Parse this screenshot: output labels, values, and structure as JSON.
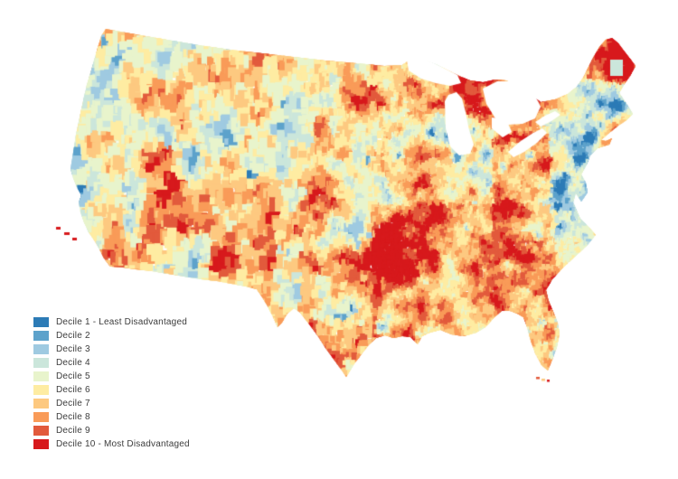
{
  "page": {
    "background": "#ffffff"
  },
  "map": {
    "name": "us-neighborhood-disadvantage-decile-choropleth",
    "geography": "Contiguous United States",
    "no_data_color": "#ffffff"
  },
  "legend": {
    "text_color": "#3c3c3c",
    "items": [
      {
        "label": "Decile 1 - Least Disadvantaged",
        "color": "#2C7BB6"
      },
      {
        "label": "Decile 2",
        "color": "#5DA2CB"
      },
      {
        "label": "Decile 3",
        "color": "#9FCAE1"
      },
      {
        "label": "Decile 4",
        "color": "#CBE6DB"
      },
      {
        "label": "Decile 5",
        "color": "#E8F4CC"
      },
      {
        "label": "Decile 6",
        "color": "#FEECA2"
      },
      {
        "label": "Decile 7",
        "color": "#FDC980"
      },
      {
        "label": "Decile 8",
        "color": "#F99B58"
      },
      {
        "label": "Decile 9",
        "color": "#E25A3C"
      },
      {
        "label": "Decile 10 - Most Disadvantaged",
        "color": "#D7191C"
      }
    ]
  },
  "chart_data": {
    "type": "heatmap",
    "subtype": "choropleth-map",
    "geography": "Contiguous United States",
    "measure": "Disadvantage decile (1 = least disadvantaged, 10 = most disadvantaged)",
    "classes": [
      "Decile 1 - Least Disadvantaged",
      "Decile 2",
      "Decile 3",
      "Decile 4",
      "Decile 5",
      "Decile 6",
      "Decile 7",
      "Decile 8",
      "Decile 9",
      "Decile 10 - Most Disadvantaged"
    ],
    "class_colors": [
      "#2C7BB6",
      "#5DA2CB",
      "#9FCAE1",
      "#CBE6DB",
      "#E8F4CC",
      "#FEECA2",
      "#FDC980",
      "#F99B58",
      "#E25A3C",
      "#D7191C"
    ],
    "legend_position": "bottom-left",
    "background": "#ffffff",
    "pattern_summary": [
      "Southeast, Appalachia, Mississippi Delta, east Texas and south Texas border are predominantly deciles 8-10",
      "Northeast coastal corridor (Boston - New York - Philadelphia - Washington) is predominantly deciles 1-3",
      "Mountain West and Great Plains show large pale county blocks mostly in deciles 5-7 with scattered blue and red patches",
      "Metropolitan areas appear as blue low-decile clusters; rural areas trend orange and red",
      "California Central Valley, Four Corners, southern New Mexico and northern Maine show decile 9-10 patches",
      "Great Lakes and areas outside the US are blank white; tract texture is fine in the East and coarse in the West"
    ]
  }
}
